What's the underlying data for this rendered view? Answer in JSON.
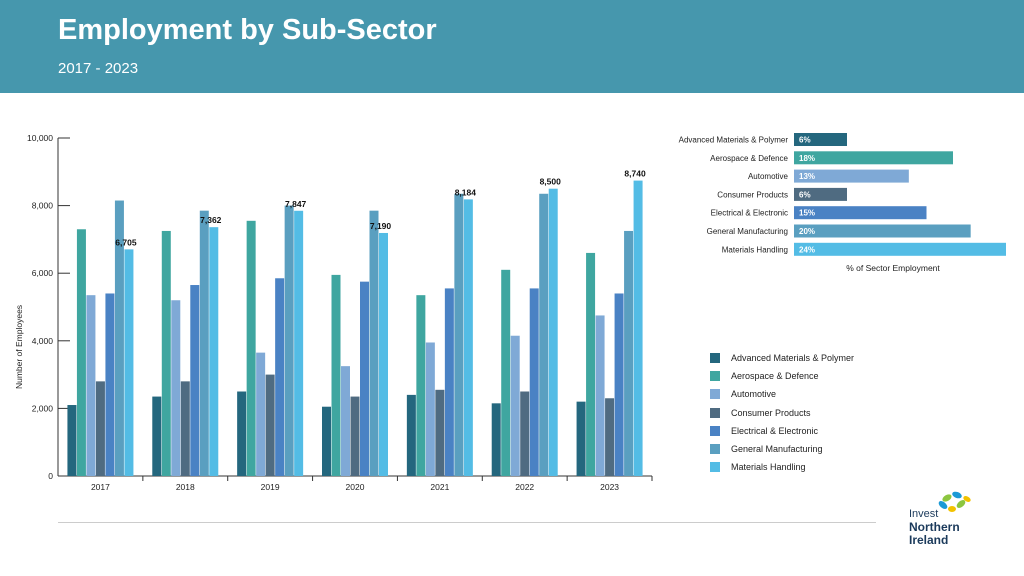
{
  "header": {
    "title": "Employment by Sub-Sector",
    "subtitle": "2017 - 2023",
    "background": "#4697ad"
  },
  "chart_data": [
    {
      "type": "bar",
      "title": "Employment by Sub-Sector",
      "ylabel": "Number of Employees",
      "xlabel": "",
      "ylim": [
        0,
        10000
      ],
      "yticks": [
        0,
        2000,
        4000,
        6000,
        8000,
        10000
      ],
      "ytick_labels": [
        "0",
        "2,000",
        "4,000",
        "6,000",
        "8,000",
        "10,000"
      ],
      "categories": [
        "2017",
        "2018",
        "2019",
        "2020",
        "2021",
        "2022",
        "2023"
      ],
      "series": [
        {
          "name": "Advanced Materials & Polymer",
          "color": "#24677e",
          "values": [
            2100,
            2350,
            2500,
            2050,
            2400,
            2150,
            2200
          ]
        },
        {
          "name": "Aerospace & Defence",
          "color": "#3fa6a0",
          "values": [
            7300,
            7250,
            7550,
            5950,
            5350,
            6100,
            6600
          ]
        },
        {
          "name": "Automotive",
          "color": "#7fa9d6",
          "values": [
            5350,
            5200,
            3650,
            3250,
            3950,
            4150,
            4750
          ]
        },
        {
          "name": "Consumer Products",
          "color": "#4f6b81",
          "values": [
            2800,
            2800,
            3000,
            2350,
            2550,
            2500,
            2300
          ]
        },
        {
          "name": "Electrical & Electronic",
          "color": "#4a82c4",
          "values": [
            5400,
            5650,
            5850,
            5750,
            5550,
            5550,
            5400
          ]
        },
        {
          "name": "General Manufacturing",
          "color": "#5a9fc0",
          "values": [
            8150,
            7850,
            8000,
            7850,
            8350,
            8350,
            7250
          ]
        },
        {
          "name": "Materials Handling",
          "color": "#53bce5",
          "values": [
            6705,
            7362,
            7847,
            7190,
            8184,
            8500,
            8740
          ]
        }
      ],
      "data_labels": [
        "6,705",
        "7,362",
        "7,847",
        "7,190",
        "8,184",
        "8,500",
        "8,740"
      ],
      "legend": "bottom-right"
    },
    {
      "type": "bar",
      "orientation": "horizontal",
      "title": "",
      "xlabel": "% of Sector Employment",
      "categories": [
        "Advanced Materials & Polymer",
        "Aerospace & Defence",
        "Automotive",
        "Consumer Products",
        "Electrical & Electronic",
        "General Manufacturing",
        "Materials Handling"
      ],
      "values": [
        6,
        18,
        13,
        6,
        15,
        20,
        24
      ],
      "value_labels": [
        "6%",
        "18%",
        "13%",
        "6%",
        "15%",
        "20%",
        "24%"
      ],
      "colors": [
        "#24677e",
        "#3fa6a0",
        "#7fa9d6",
        "#4f6b81",
        "#4a82c4",
        "#5a9fc0",
        "#53bce5"
      ],
      "xlim": [
        0,
        24
      ]
    }
  ],
  "logo": {
    "line1": "Invest",
    "line2": "Northern",
    "line3": "Ireland"
  }
}
